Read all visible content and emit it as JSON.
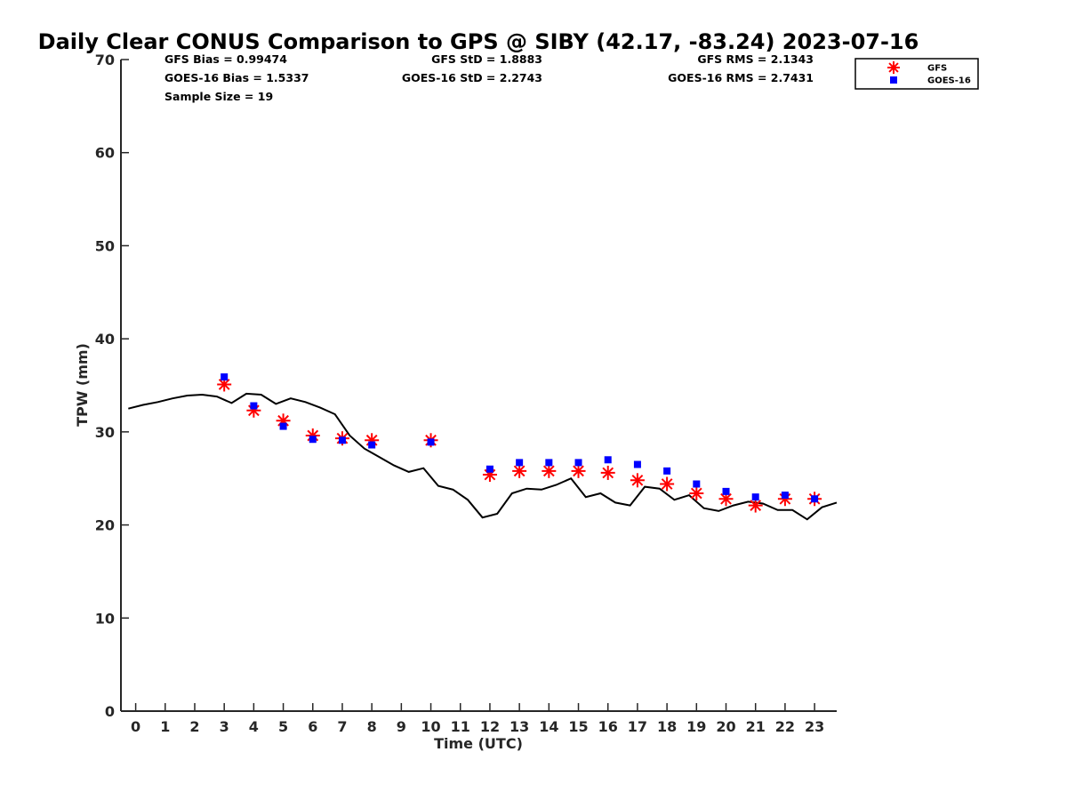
{
  "chart_data": {
    "type": "scatter",
    "title": "Daily Clear CONUS Comparison to GPS @ SIBY (42.17, -83.24) 2023-07-16",
    "xlabel": "Time (UTC)",
    "ylabel": "TPW (mm)",
    "xlim": [
      -0.5,
      23.75
    ],
    "ylim": [
      0,
      70
    ],
    "x_ticks": [
      "0",
      "1",
      "2",
      "3",
      "4",
      "5",
      "6",
      "7",
      "8",
      "9",
      "10",
      "11",
      "12",
      "13",
      "14",
      "15",
      "16",
      "17",
      "18",
      "19",
      "20",
      "21",
      "22",
      "23"
    ],
    "y_ticks": [
      "0",
      "10",
      "20",
      "30",
      "40",
      "50",
      "60",
      "70"
    ],
    "grid": false,
    "legend_position": "top-right",
    "stats": [
      [
        "GFS Bias = 0.99474",
        "GFS StD = 1.8883",
        "GFS RMS = 2.1343"
      ],
      [
        "GOES-16 Bias = 1.5337",
        "GOES-16 StD = 2.2743",
        "GOES-16 RMS = 2.7431"
      ],
      [
        "Sample Size = 19",
        "",
        ""
      ]
    ],
    "series": [
      {
        "name": "GFS",
        "marker": "asterisk",
        "color": "#ff0000",
        "x": [
          3,
          4,
          5,
          6,
          7,
          8,
          10,
          12,
          13,
          14,
          15,
          16,
          17,
          18,
          19,
          20,
          21,
          22,
          23
        ],
        "y": [
          35.1,
          32.3,
          31.2,
          29.6,
          29.3,
          29.1,
          29.1,
          25.4,
          25.8,
          25.8,
          25.8,
          25.6,
          24.8,
          24.4,
          23.4,
          22.8,
          22.1,
          22.8,
          22.8
        ]
      },
      {
        "name": "GOES-16",
        "marker": "square",
        "color": "#0000ff",
        "x": [
          3,
          4,
          5,
          6,
          7,
          8,
          10,
          12,
          13,
          14,
          15,
          16,
          17,
          18,
          19,
          20,
          21,
          22,
          23
        ],
        "y": [
          35.9,
          32.8,
          30.6,
          29.2,
          29.1,
          28.6,
          28.9,
          26.0,
          26.7,
          26.7,
          26.7,
          27.0,
          26.5,
          25.8,
          24.4,
          23.6,
          23.0,
          23.2,
          22.8
        ]
      },
      {
        "name": "GPS",
        "marker": "line",
        "color": "#000000",
        "x": [
          -0.25,
          0.25,
          0.75,
          1.25,
          1.75,
          2.25,
          2.75,
          3.25,
          3.75,
          4.25,
          4.75,
          5.25,
          5.75,
          6.25,
          6.75,
          7.25,
          7.75,
          8.25,
          8.75,
          9.25,
          9.75,
          10.25,
          10.75,
          11.25,
          11.75,
          12.25,
          12.75,
          13.25,
          13.75,
          14.25,
          14.75,
          15.25,
          15.75,
          16.25,
          16.75,
          17.25,
          17.75,
          18.25,
          18.75,
          19.25,
          19.75,
          20.25,
          20.75,
          21.25,
          21.75,
          22.25,
          22.75,
          23.25,
          23.75
        ],
        "y": [
          32.5,
          32.9,
          33.2,
          33.6,
          33.9,
          34.0,
          33.8,
          33.1,
          34.1,
          34.0,
          33.0,
          33.6,
          33.2,
          32.6,
          31.9,
          29.6,
          28.2,
          27.3,
          26.4,
          25.7,
          26.1,
          24.2,
          23.8,
          22.7,
          20.8,
          21.2,
          23.4,
          23.9,
          23.8,
          24.3,
          25.0,
          23.0,
          23.4,
          22.4,
          22.1,
          24.1,
          23.9,
          22.7,
          23.2,
          21.8,
          21.5,
          22.1,
          22.5,
          22.3,
          21.6,
          21.6,
          20.6,
          21.9,
          22.4
        ]
      }
    ],
    "legend": [
      "GFS",
      "GOES-16"
    ]
  }
}
